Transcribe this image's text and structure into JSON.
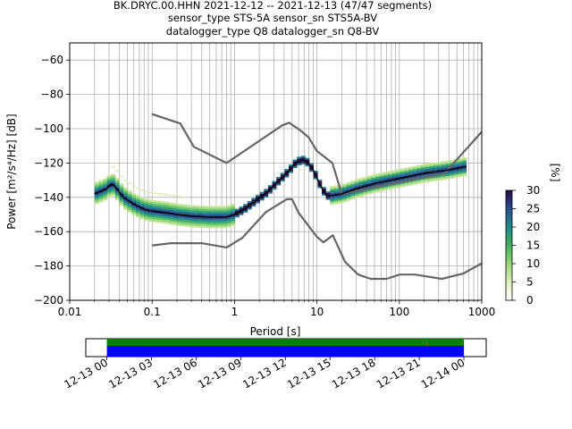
{
  "chart_data": [
    {
      "type": "heatmap",
      "title_lines": [
        "BK.DRYC.00.HHN   2021-12-12 -- 2021-12-13  (47/47 segments)",
        "sensor_type STS-5A sensor_sn STS5A-BV",
        "datalogger_type Q8 datalogger_sn Q8-BV"
      ],
      "xlabel": "Period [s]",
      "ylabel": "Power [m²/s⁴/Hz] [dB]",
      "xscale": "log",
      "xlim": [
        0.01,
        1000
      ],
      "ylim": [
        -200,
        -50
      ],
      "grid": true,
      "x_tick_labels": [
        "0.01",
        "0.1",
        "1",
        "10",
        "100",
        "1000"
      ],
      "y_tick_labels": [
        "−60",
        "−80",
        "−100",
        "−120",
        "−140",
        "−160",
        "−180",
        "−200"
      ],
      "colorbar": {
        "label": "[%]",
        "range": [
          0,
          30
        ],
        "tick_labels": [
          "0",
          "5",
          "10",
          "15",
          "20",
          "25",
          "30"
        ],
        "colors": [
          "#ffffff",
          "#d8ecb0",
          "#9ad67a",
          "#41b05a",
          "#1f8a86",
          "#2a4f8c",
          "#2a0a4a"
        ]
      },
      "series": [
        {
          "name": "mode",
          "color": "#000000",
          "points": [
            [
              0.02,
              -138
            ],
            [
              0.025,
              -136
            ],
            [
              0.028,
              -135
            ],
            [
              0.032,
              -132
            ],
            [
              0.036,
              -134
            ],
            [
              0.045,
              -140
            ],
            [
              0.06,
              -144
            ],
            [
              0.08,
              -147
            ],
            [
              0.1,
              -148
            ],
            [
              0.15,
              -149
            ],
            [
              0.2,
              -150
            ],
            [
              0.3,
              -151
            ],
            [
              0.5,
              -151.5
            ],
            [
              0.8,
              -151.5
            ],
            [
              1.0,
              -150
            ],
            [
              1.3,
              -147
            ],
            [
              1.8,
              -142
            ],
            [
              2.5,
              -137
            ],
            [
              3.5,
              -130
            ],
            [
              4.5,
              -125
            ],
            [
              5.5,
              -120
            ],
            [
              6.5,
              -118
            ],
            [
              7.5,
              -119
            ],
            [
              9,
              -124
            ],
            [
              11,
              -133
            ],
            [
              13,
              -139
            ],
            [
              15,
              -139
            ],
            [
              20,
              -138
            ],
            [
              30,
              -135
            ],
            [
              50,
              -132
            ],
            [
              100,
              -129
            ],
            [
              200,
              -126
            ],
            [
              400,
              -124
            ],
            [
              650,
              -122
            ]
          ]
        },
        {
          "name": "high noise model",
          "color": "#666666",
          "points": [
            [
              0.1,
              -91.5
            ],
            [
              0.22,
              -97
            ],
            [
              0.32,
              -110.5
            ],
            [
              0.8,
              -120
            ],
            [
              3.8,
              -98
            ],
            [
              4.6,
              -96.5
            ],
            [
              6.3,
              -101
            ],
            [
              7.9,
              -105
            ],
            [
              10,
              -113
            ],
            [
              15.4,
              -120
            ],
            [
              20,
              -138
            ],
            [
              354.8,
              -126
            ],
            [
              10000,
              -48
            ]
          ]
        },
        {
          "name": "low noise model",
          "color": "#666666",
          "points": [
            [
              0.1,
              -168
            ],
            [
              0.17,
              -166.7
            ],
            [
              0.4,
              -166.7
            ],
            [
              0.8,
              -169.2
            ],
            [
              1.24,
              -163.7
            ],
            [
              2.4,
              -148.6
            ],
            [
              4.3,
              -141.1
            ],
            [
              5.0,
              -141.1
            ],
            [
              6.0,
              -149
            ],
            [
              10,
              -163
            ],
            [
              12,
              -166.2
            ],
            [
              15.6,
              -162.1
            ],
            [
              21.9,
              -177.5
            ],
            [
              31.6,
              -185
            ],
            [
              45,
              -187.5
            ],
            [
              70,
              -187.5
            ],
            [
              101,
              -185
            ],
            [
              154,
              -185
            ],
            [
              328,
              -187.5
            ],
            [
              600,
              -184.4
            ],
            [
              10000,
              -151.9
            ]
          ]
        }
      ]
    },
    {
      "type": "bar",
      "title": "",
      "x_tick_labels": [
        "12-13 00",
        "12-13 03",
        "12-13 06",
        "12-13 09",
        "12-13 12",
        "12-13 15",
        "12-13 18",
        "12-13 21",
        "12-14 00"
      ],
      "x_range": [
        "2021-12-12 22:35",
        "2021-12-14 01:30"
      ],
      "data_coverage": {
        "start": "2021-12-13 00:00",
        "end": "2021-12-14 00:00",
        "color": "#0000ff"
      },
      "psd_coverage": {
        "start": "2021-12-13 00:00",
        "end": "2021-12-14 00:00",
        "color": "#008000"
      },
      "marker": {
        "time": "2021-12-13 21:30",
        "color": "#cc3333"
      }
    }
  ]
}
